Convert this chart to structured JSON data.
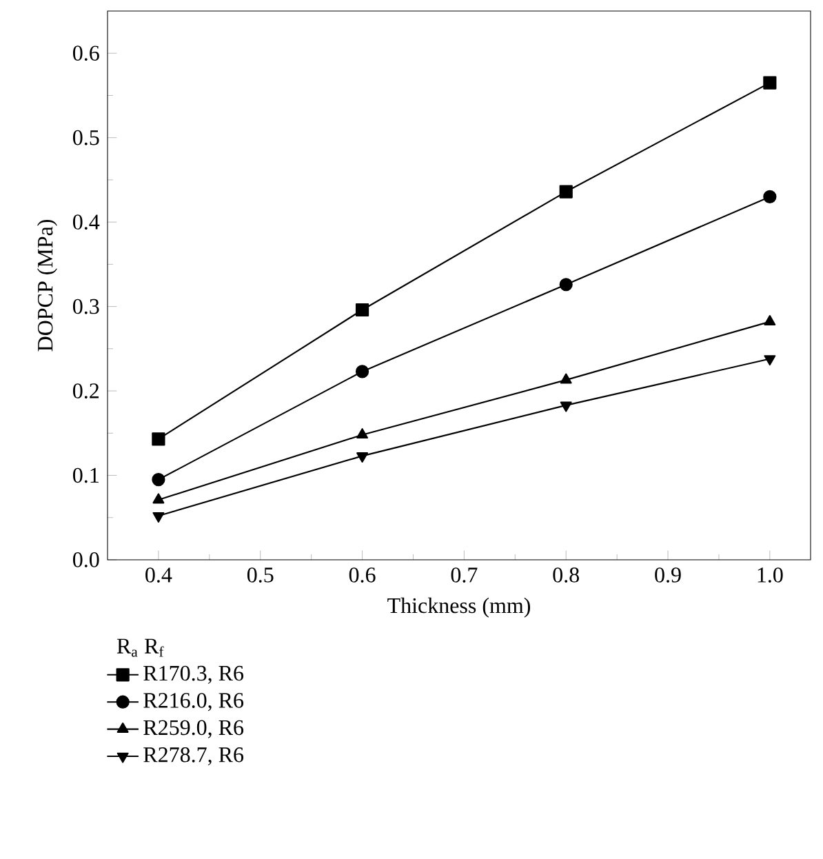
{
  "chart_data": {
    "type": "line",
    "xlabel": "Thickness (mm)",
    "ylabel": "DOPCP (MPa)",
    "legend_title": "R$_{a}$      R$_{f}$",
    "legend": "bottom",
    "grid": false,
    "x": [
      0.4,
      0.6,
      0.8,
      1.0
    ],
    "xlim": [
      0.35,
      1.04
    ],
    "xticks": [
      0.4,
      0.5,
      0.6,
      0.7,
      0.8,
      0.9,
      {
        "value": 1,
        "label": "1.0"
      }
    ],
    "ylim": [
      0,
      0.65
    ],
    "yticks": [
      {
        "value": 0,
        "label": "0.0"
      },
      0.1,
      0.2,
      0.3,
      0.4,
      0.5,
      0.6
    ],
    "series": [
      {
        "name": "R170.3, R6",
        "color": "#000000",
        "marker": "square",
        "values": [
          0.143,
          0.296,
          0.436,
          0.565
        ]
      },
      {
        "name": "R216.0, R6",
        "color": "#000000",
        "marker": "circle",
        "values": [
          0.095,
          0.223,
          0.326,
          0.43
        ]
      },
      {
        "name": "R259.0, R6",
        "color": "#000000",
        "marker": "triangle",
        "values": [
          0.071,
          0.148,
          0.213,
          0.282
        ]
      },
      {
        "name": "R278.7, R6",
        "color": "#000000",
        "marker": "triangle-down",
        "values": [
          0.052,
          0.123,
          0.183,
          0.238
        ]
      }
    ]
  }
}
